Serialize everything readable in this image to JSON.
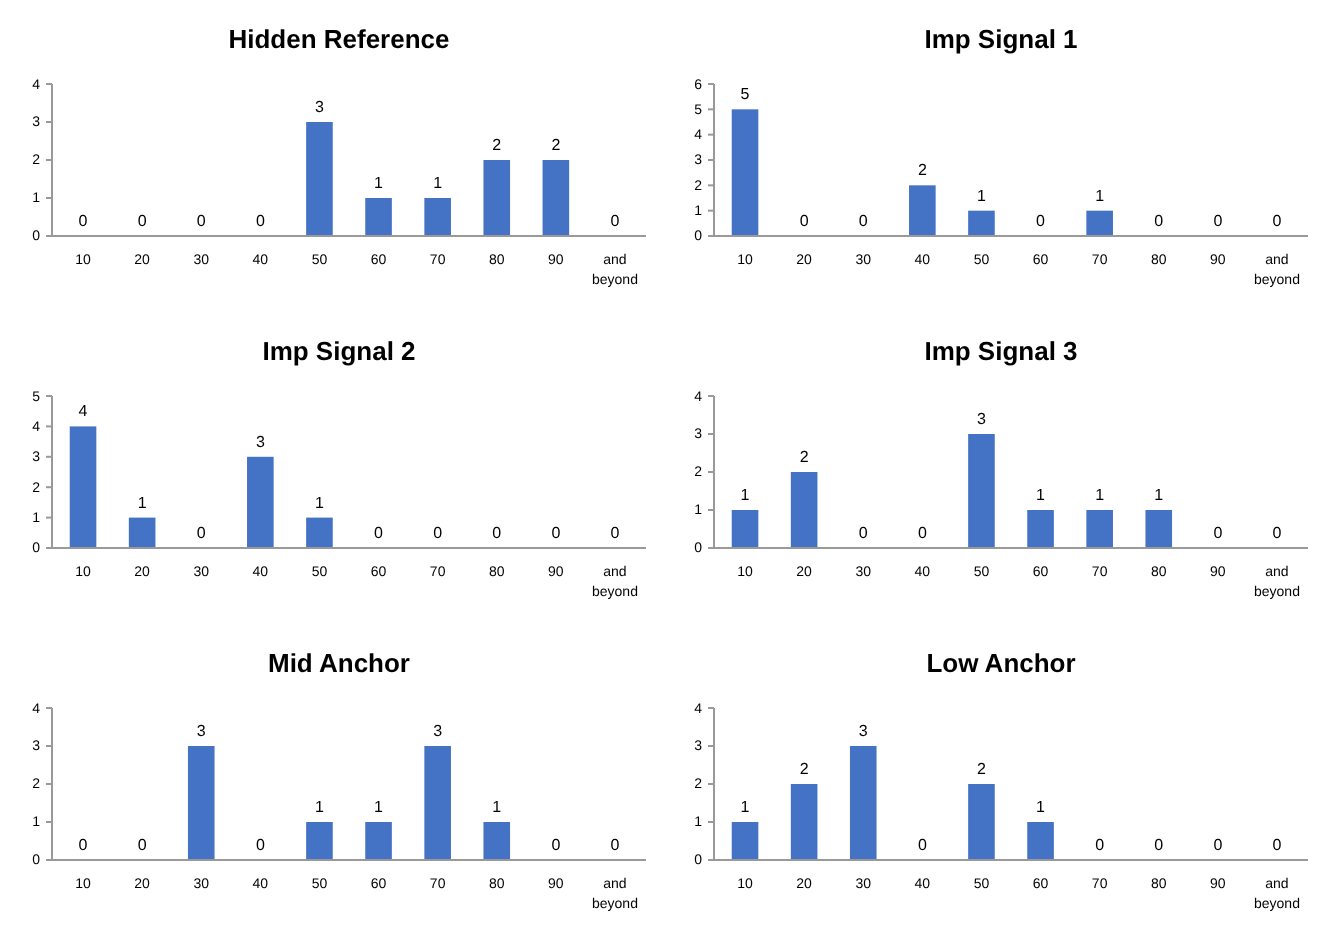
{
  "chart_data": [
    {
      "type": "bar",
      "title": "Hidden Reference",
      "categories": [
        "10",
        "20",
        "30",
        "40",
        "50",
        "60",
        "70",
        "80",
        "90",
        "and beyond"
      ],
      "values": [
        0,
        0,
        0,
        0,
        3,
        1,
        1,
        2,
        2,
        0
      ],
      "color": "#4472c4",
      "ylim": [
        0,
        4
      ],
      "yticks": [
        0,
        1,
        2,
        3,
        4
      ],
      "data_labels": true,
      "grid": false
    },
    {
      "type": "bar",
      "title": "Imp Signal 1",
      "categories": [
        "10",
        "20",
        "30",
        "40",
        "50",
        "60",
        "70",
        "80",
        "90",
        "and beyond"
      ],
      "values": [
        5,
        0,
        0,
        2,
        1,
        0,
        1,
        0,
        0,
        0
      ],
      "color": "#4472c4",
      "ylim": [
        0,
        6
      ],
      "yticks": [
        0,
        1,
        2,
        3,
        4,
        5,
        6
      ],
      "data_labels": true,
      "grid": false
    },
    {
      "type": "bar",
      "title": "Imp Signal 2",
      "categories": [
        "10",
        "20",
        "30",
        "40",
        "50",
        "60",
        "70",
        "80",
        "90",
        "and beyond"
      ],
      "values": [
        4,
        1,
        0,
        3,
        1,
        0,
        0,
        0,
        0,
        0
      ],
      "color": "#4472c4",
      "ylim": [
        0,
        5
      ],
      "yticks": [
        0,
        1,
        2,
        3,
        4,
        5
      ],
      "data_labels": true,
      "grid": false
    },
    {
      "type": "bar",
      "title": "Imp Signal 3",
      "categories": [
        "10",
        "20",
        "30",
        "40",
        "50",
        "60",
        "70",
        "80",
        "90",
        "and beyond"
      ],
      "values": [
        1,
        2,
        0,
        0,
        3,
        1,
        1,
        1,
        0,
        0
      ],
      "color": "#4472c4",
      "ylim": [
        0,
        4
      ],
      "yticks": [
        0,
        1,
        2,
        3,
        4
      ],
      "data_labels": true,
      "grid": false
    },
    {
      "type": "bar",
      "title": "Mid Anchor",
      "categories": [
        "10",
        "20",
        "30",
        "40",
        "50",
        "60",
        "70",
        "80",
        "90",
        "and beyond"
      ],
      "values": [
        0,
        0,
        3,
        0,
        1,
        1,
        3,
        1,
        0,
        0
      ],
      "color": "#4472c4",
      "ylim": [
        0,
        4
      ],
      "yticks": [
        0,
        1,
        2,
        3,
        4
      ],
      "data_labels": true,
      "grid": false
    },
    {
      "type": "bar",
      "title": "Low Anchor",
      "categories": [
        "10",
        "20",
        "30",
        "40",
        "50",
        "60",
        "70",
        "80",
        "90",
        "and beyond"
      ],
      "values": [
        1,
        2,
        3,
        0,
        2,
        1,
        0,
        0,
        0,
        0
      ],
      "color": "#4472c4",
      "ylim": [
        0,
        4
      ],
      "yticks": [
        0,
        1,
        2,
        3,
        4
      ],
      "data_labels": true,
      "grid": false
    }
  ]
}
